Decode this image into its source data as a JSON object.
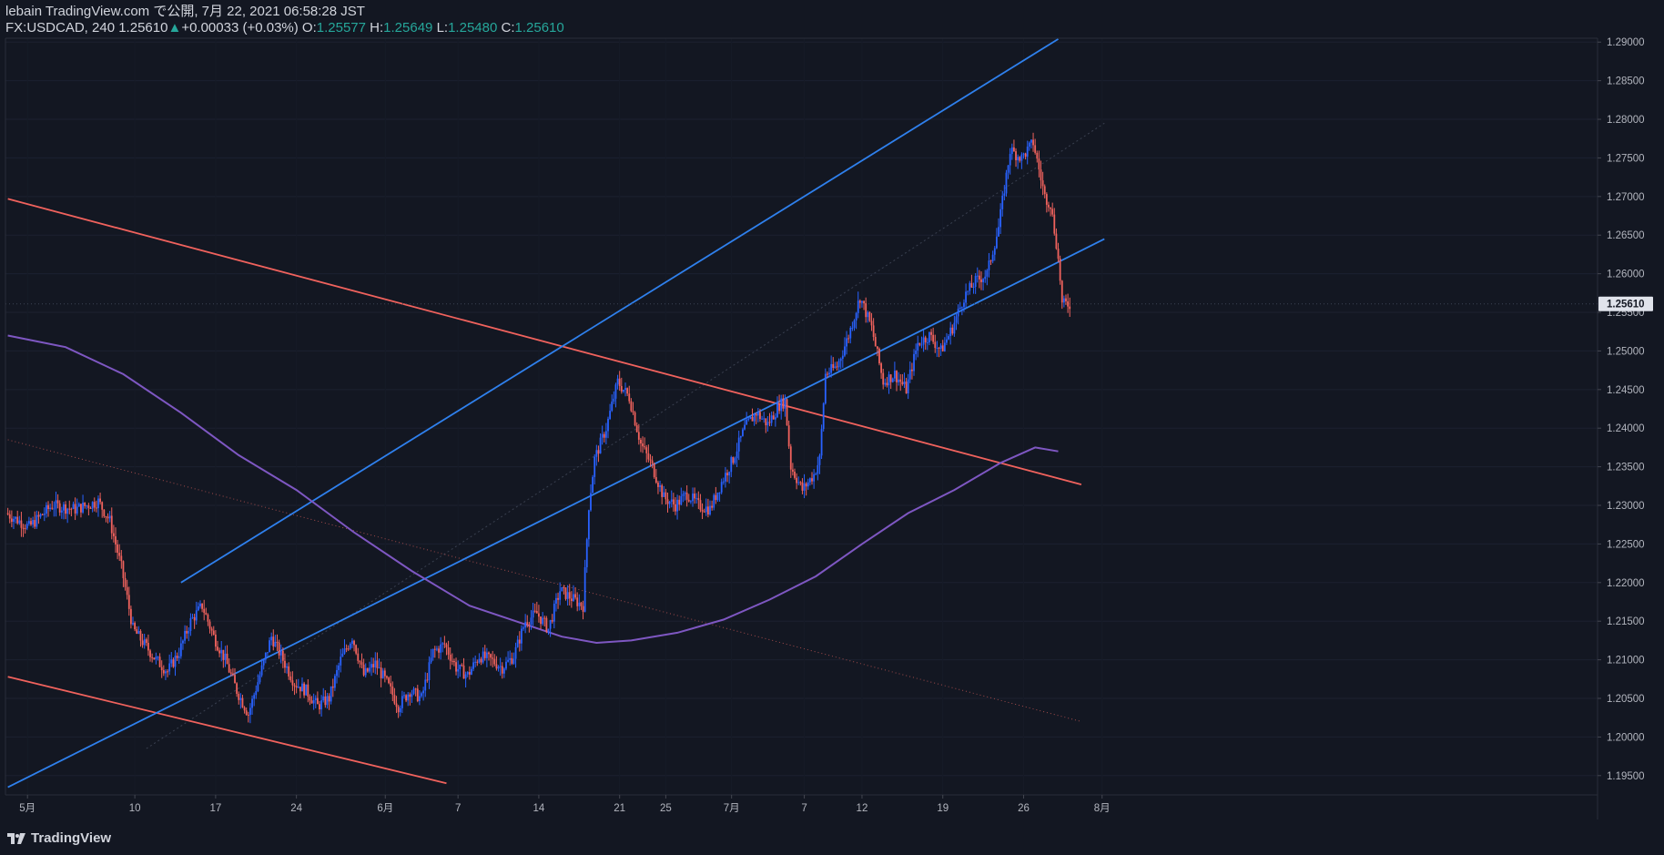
{
  "header": {
    "line1": "lebain TradingView.com で公開, 7月 22, 2021 06:58:28 JST",
    "symbol": "FX:USDCAD, 240",
    "last": "1.25610",
    "arrow": "▲",
    "change": "+0.00033 (+0.03%)",
    "o_label": "O:",
    "o_val": "1.25577",
    "h_label": "H:",
    "h_val": "1.25649",
    "l_label": "L:",
    "l_val": "1.25480",
    "c_label": "C:",
    "c_val": "1.25610"
  },
  "footer": {
    "brand": "TradingView"
  },
  "colors": {
    "background": "#131722",
    "up": "#2962ff",
    "down": "#f0625d",
    "channel": "#2f80ed",
    "resistance": "#f0625d",
    "ma": "#7e57c2",
    "last_price_bg": "#e0e3eb"
  },
  "chart_data": {
    "type": "candlestick",
    "symbol": "FX:USDCAD",
    "interval": "240",
    "ylim": [
      1.1925,
      1.2905
    ],
    "last_price": 1.2561,
    "y_ticks": [
      1.29,
      1.285,
      1.28,
      1.275,
      1.27,
      1.265,
      1.26,
      1.255,
      1.25,
      1.245,
      1.24,
      1.235,
      1.23,
      1.225,
      1.22,
      1.215,
      1.21,
      1.205,
      1.2,
      1.195
    ],
    "x_ticks": [
      "5月",
      "10",
      "17",
      "24",
      "6月",
      "7",
      "14",
      "21",
      "25",
      "7月",
      "7",
      "12",
      "19",
      "26",
      "8月"
    ],
    "x_tick_days": [
      -0.3,
      9,
      16,
      23,
      30.7,
      37,
      44,
      51,
      55,
      60.7,
      67,
      72,
      79,
      86,
      92.8
    ],
    "path_points": [
      [
        -2,
        1.229
      ],
      [
        0,
        1.2272
      ],
      [
        2,
        1.23
      ],
      [
        4,
        1.2295
      ],
      [
        6,
        1.2305
      ],
      [
        7,
        1.228
      ],
      [
        8,
        1.222
      ],
      [
        9,
        1.214
      ],
      [
        10,
        1.212
      ],
      [
        11,
        1.21
      ],
      [
        12,
        1.2085
      ],
      [
        13,
        1.211
      ],
      [
        14,
        1.215
      ],
      [
        15,
        1.217
      ],
      [
        16,
        1.213
      ],
      [
        17,
        1.21
      ],
      [
        18,
        1.206
      ],
      [
        19,
        1.203
      ],
      [
        20,
        1.208
      ],
      [
        21,
        1.213
      ],
      [
        22,
        1.21
      ],
      [
        23,
        1.207
      ],
      [
        24,
        1.206
      ],
      [
        25,
        1.204
      ],
      [
        26,
        1.205
      ],
      [
        27,
        1.21
      ],
      [
        28,
        1.213
      ],
      [
        29,
        1.208
      ],
      [
        30,
        1.2095
      ],
      [
        31,
        1.207
      ],
      [
        32,
        1.204
      ],
      [
        33,
        1.206
      ],
      [
        34,
        1.205
      ],
      [
        35,
        1.211
      ],
      [
        36,
        1.212
      ],
      [
        37,
        1.209
      ],
      [
        38,
        1.208
      ],
      [
        39,
        1.2105
      ],
      [
        40,
        1.21
      ],
      [
        41,
        1.209
      ],
      [
        42,
        1.2105
      ],
      [
        43,
        1.215
      ],
      [
        44,
        1.216
      ],
      [
        45,
        1.214
      ],
      [
        46,
        1.219
      ],
      [
        47,
        1.218
      ],
      [
        48,
        1.217
      ],
      [
        48.5,
        1.23
      ],
      [
        49,
        1.236
      ],
      [
        50,
        1.24
      ],
      [
        51,
        1.246
      ],
      [
        52,
        1.244
      ],
      [
        53,
        1.238
      ],
      [
        54,
        1.235
      ],
      [
        55,
        1.231
      ],
      [
        56,
        1.23
      ],
      [
        57,
        1.2315
      ],
      [
        58,
        1.23
      ],
      [
        59,
        1.2295
      ],
      [
        60,
        1.233
      ],
      [
        61,
        1.236
      ],
      [
        62,
        1.24
      ],
      [
        63,
        1.242
      ],
      [
        64,
        1.2405
      ],
      [
        65,
        1.243
      ],
      [
        65.5,
        1.2435
      ],
      [
        66,
        1.235
      ],
      [
        67,
        1.232
      ],
      [
        68,
        1.234
      ],
      [
        68.5,
        1.236
      ],
      [
        69,
        1.247
      ],
      [
        70,
        1.248
      ],
      [
        71,
        1.252
      ],
      [
        72,
        1.257
      ],
      [
        73,
        1.253
      ],
      [
        74,
        1.246
      ],
      [
        75,
        1.247
      ],
      [
        76,
        1.245
      ],
      [
        77,
        1.251
      ],
      [
        78,
        1.252
      ],
      [
        79,
        1.25
      ],
      [
        80,
        1.253
      ],
      [
        81,
        1.257
      ],
      [
        82,
        1.259
      ],
      [
        83,
        1.26
      ],
      [
        84,
        1.266
      ],
      [
        85,
        1.276
      ],
      [
        86,
        1.275
      ],
      [
        87,
        1.277
      ],
      [
        88,
        1.27
      ],
      [
        88.5,
        1.269
      ],
      [
        89,
        1.264
      ],
      [
        89.3,
        1.26
      ],
      [
        89.5,
        1.256
      ],
      [
        90,
        1.2561
      ]
    ],
    "indicators": {
      "moving_average": [
        [
          -2,
          1.252
        ],
        [
          3,
          1.2505
        ],
        [
          8,
          1.247
        ],
        [
          13,
          1.242
        ],
        [
          18,
          1.2365
        ],
        [
          23,
          1.232
        ],
        [
          28,
          1.2265
        ],
        [
          33,
          1.2215
        ],
        [
          38,
          1.217
        ],
        [
          43,
          1.2145
        ],
        [
          46,
          1.213
        ],
        [
          49,
          1.2122
        ],
        [
          52,
          1.2125
        ],
        [
          56,
          1.2135
        ],
        [
          60,
          1.2152
        ],
        [
          64,
          1.2178
        ],
        [
          68,
          1.2208
        ],
        [
          72,
          1.225
        ],
        [
          76,
          1.229
        ],
        [
          80,
          1.232
        ],
        [
          84,
          1.2355
        ],
        [
          87,
          1.2375
        ],
        [
          89,
          1.237
        ]
      ]
    },
    "drawings": {
      "resistance_line": [
        [
          -2,
          1.2697
        ],
        [
          91,
          1.2327
        ]
      ],
      "support_line_lower": [
        [
          -2,
          1.2078
        ],
        [
          36,
          1.194
        ]
      ],
      "channel_upper": [
        [
          13,
          1.22
        ],
        [
          89,
          1.2904
        ]
      ],
      "channel_lower": [
        [
          -2,
          1.1935
        ],
        [
          93,
          1.2645
        ]
      ],
      "dotted_trend": [
        [
          -2,
          1.2385
        ],
        [
          91,
          1.202
        ]
      ]
    }
  }
}
